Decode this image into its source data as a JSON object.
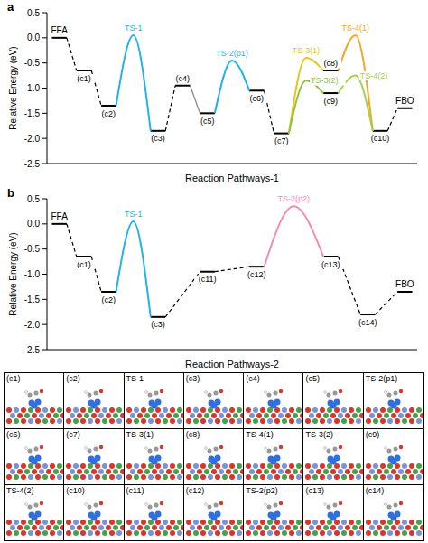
{
  "chart_data": [
    {
      "type": "energy_profile",
      "panel": "a",
      "x_label": "Reaction Pathways-1",
      "y_label": "Relative Energy (eV)",
      "xlim": [
        -0.5,
        14.5
      ],
      "ylim": [
        -2.5,
        0.5
      ],
      "yticks": [
        0.5,
        {
          "value": 0,
          "label": "0.0"
        },
        -0.5,
        {
          "value": -1,
          "label": "-1.0"
        },
        -1.5,
        {
          "value": -2,
          "label": "-2.0"
        },
        -2.5
      ],
      "tick_labels": "y",
      "grid": false,
      "levels": [
        {
          "label": "FFA",
          "x": 0,
          "value": 0
        },
        {
          "label": "(c1)",
          "x": 1,
          "value": -0.65
        },
        {
          "label": "(c2)",
          "x": 2,
          "value": -1.35
        },
        {
          "label": "(c3)",
          "x": 4,
          "value": -1.85
        },
        {
          "label": "(c4)",
          "x": 5,
          "value": -0.95
        },
        {
          "label": "(c5)",
          "x": 6,
          "value": -1.5
        },
        {
          "label": "(c6)",
          "x": 8,
          "value": -1.05
        },
        {
          "label": "(c7)",
          "x": 9,
          "value": -1.9
        },
        {
          "label": "(c8)",
          "x": 11,
          "value": -0.65
        },
        {
          "label": "(c9)",
          "x": 11,
          "value": -1.1
        },
        {
          "label": "(c10)",
          "x": 13,
          "value": -1.85
        },
        {
          "label": "FBO",
          "x": 14,
          "value": -1.4
        }
      ],
      "transition_states": [
        {
          "label": "TS-1",
          "x": 3,
          "value": 0.05,
          "from": "(c2)",
          "to": "(c3)",
          "color": "#1fb3e8"
        },
        {
          "label": "TS-2(p1)",
          "x": 7,
          "value": -0.45,
          "from": "(c5)",
          "to": "(c6)",
          "color": "#1fb3e8"
        },
        {
          "label": "TS-3(1)",
          "x": 10,
          "value": -0.4,
          "from": "(c7)",
          "to": "(c8)",
          "color": "#e8c51a"
        },
        {
          "label": "TS-4(1)",
          "x": 12,
          "value": 0.05,
          "from": "(c8)",
          "to": "(c10)",
          "color": "#f5a623"
        },
        {
          "label": "TS-3(2)",
          "x": 10,
          "value": -0.85,
          "from": "(c7)",
          "to": "(c9)",
          "color": "#8cc63f"
        },
        {
          "label": "TS-4(2)",
          "x": 12,
          "value": -0.75,
          "from": "(c9)",
          "to": "(c10)",
          "color": "#a3d14a"
        }
      ],
      "links": [
        {
          "from": "FFA",
          "to": "(c1)",
          "color": "#000000",
          "line_style": "dashed"
        },
        {
          "from": "(c1)",
          "to": "(c2)",
          "color": "#000000",
          "line_style": "dashed"
        },
        {
          "from": "(c3)",
          "to": "(c4)",
          "color": "#000000",
          "line_style": "dashed"
        },
        {
          "from": "(c4)",
          "to": "(c5)",
          "color": "#808080",
          "line_style": "solid"
        },
        {
          "from": "(c6)",
          "to": "(c7)",
          "color": "#000000",
          "line_style": "dashed"
        },
        {
          "from": "(c10)",
          "to": "FBO",
          "color": "#000000",
          "line_style": "dashed"
        }
      ]
    },
    {
      "type": "energy_profile",
      "panel": "b",
      "x_label": "Reaction Pathways-2",
      "y_label": "Relative Energy (eV)",
      "xlim": [
        -0.5,
        14.5
      ],
      "ylim": [
        -2.5,
        0.5
      ],
      "yticks": [
        0.5,
        {
          "value": 0,
          "label": "0.0"
        },
        -0.5,
        {
          "value": -1,
          "label": "-1.0"
        },
        -1.5,
        {
          "value": -2,
          "label": "-2.0"
        },
        -2.5
      ],
      "tick_labels": "y",
      "grid": false,
      "levels": [
        {
          "label": "FFA",
          "x": 0,
          "value": 0
        },
        {
          "label": "(c1)",
          "x": 1,
          "value": -0.65
        },
        {
          "label": "(c2)",
          "x": 2,
          "value": -1.35
        },
        {
          "label": "(c3)",
          "x": 4,
          "value": -1.85
        },
        {
          "label": "(c11)",
          "x": 6,
          "value": -0.95
        },
        {
          "label": "(c12)",
          "x": 8,
          "value": -0.85
        },
        {
          "label": "(c13)",
          "x": 11,
          "value": -0.65
        },
        {
          "label": "(c14)",
          "x": 12.5,
          "value": -1.8
        },
        {
          "label": "FBO",
          "x": 14,
          "value": -1.35
        }
      ],
      "transition_states": [
        {
          "label": "TS-1",
          "x": 3,
          "value": 0.05,
          "from": "(c2)",
          "to": "(c3)",
          "color": "#1fb3e8"
        },
        {
          "label": "TS-2(p2)",
          "x": 9.5,
          "value": 0.35,
          "from": "(c12)",
          "to": "(c13)",
          "color": "#f28cb8"
        }
      ],
      "links": [
        {
          "from": "FFA",
          "to": "(c1)",
          "color": "#000000",
          "line_style": "dashed"
        },
        {
          "from": "(c1)",
          "to": "(c2)",
          "color": "#000000",
          "line_style": "dashed"
        },
        {
          "from": "(c3)",
          "to": "(c11)",
          "color": "#000000",
          "line_style": "dashed"
        },
        {
          "from": "(c11)",
          "to": "(c12)",
          "color": "#000000",
          "line_style": "dashed"
        },
        {
          "from": "(c13)",
          "to": "(c14)",
          "color": "#000000",
          "line_style": "dashed"
        },
        {
          "from": "(c14)",
          "to": "FBO",
          "color": "#000000",
          "line_style": "dashed"
        }
      ]
    }
  ],
  "structure_grid": {
    "rows": [
      [
        "(c1)",
        "(c2)",
        "TS-1",
        "(c3)",
        "(c4)",
        "(c5)",
        "TS-2(p1)"
      ],
      [
        "(c6)",
        "(c7)",
        "TS-3(1)",
        "(c8)",
        "TS-4(1)",
        "TS-3(2)",
        "(c9)"
      ],
      [
        "TS-4(2)",
        "(c10)",
        "(c11)",
        "(c12)",
        "TS-2(p2)",
        "(c13)",
        "(c14)"
      ]
    ]
  }
}
